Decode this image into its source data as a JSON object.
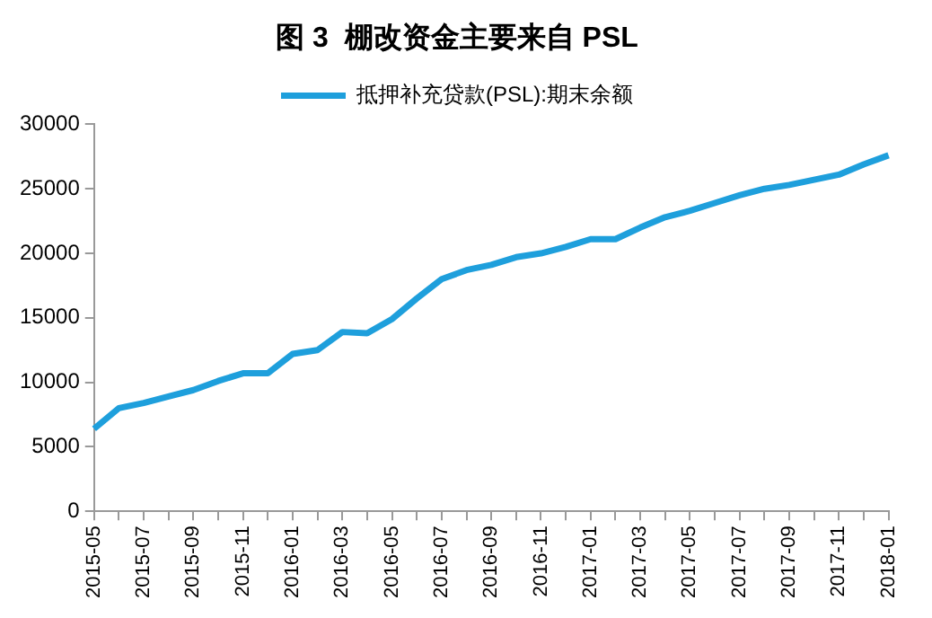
{
  "chart_data": {
    "type": "line",
    "title": "图 3  棚改资金主要来自 PSL",
    "categories": [
      "2015-05",
      null,
      "2015-07",
      null,
      "2015-09",
      null,
      "2015-11",
      null,
      "2016-01",
      null,
      "2016-03",
      null,
      "2016-05",
      null,
      "2016-07",
      null,
      "2016-09",
      null,
      "2016-11",
      null,
      "2017-01",
      null,
      "2017-03",
      null,
      "2017-05",
      null,
      "2017-07",
      null,
      "2017-09",
      null,
      "2017-11",
      null,
      "2018-01"
    ],
    "series": [
      {
        "name": "抵押补充贷款(PSL):期末余额",
        "color": "#1e9fdc",
        "values": [
          6400,
          8000,
          8400,
          8900,
          9400,
          10100,
          10700,
          10700,
          12200,
          12500,
          13900,
          13800,
          14900,
          16500,
          18000,
          18700,
          19100,
          19700,
          20000,
          20500,
          21100,
          21100,
          22000,
          22800,
          23300,
          23900,
          24500,
          25000,
          25300,
          25700,
          26100,
          26900,
          27600
        ]
      }
    ],
    "ylim": [
      0,
      30000
    ],
    "yticks": [
      0,
      5000,
      10000,
      15000,
      20000,
      25000,
      30000
    ],
    "grid": false,
    "legend": "top",
    "marker": "none",
    "line_style": "solid"
  }
}
